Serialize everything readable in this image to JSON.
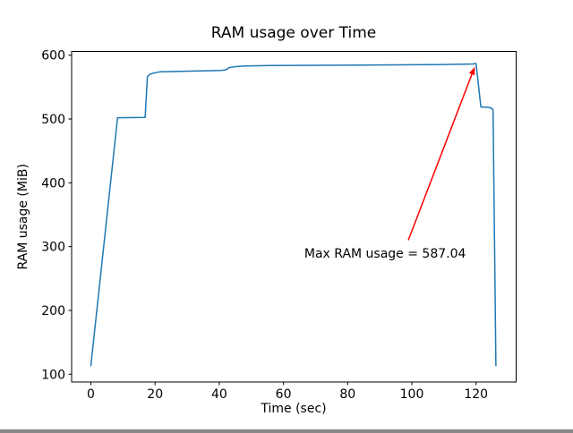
{
  "figure": {
    "background": "#ffffff"
  },
  "chart_data": {
    "type": "line",
    "title": "RAM usage over Time",
    "xlabel": "Time (sec)",
    "ylabel": "RAM usage (MiB)",
    "xlim": [
      -6.0,
      132.5
    ],
    "ylim": [
      87.8,
      605.9
    ],
    "xticks": [
      0,
      20,
      40,
      60,
      80,
      100,
      120
    ],
    "yticks": [
      100,
      200,
      300,
      400,
      500,
      600
    ],
    "grid": false,
    "legend_position": "none",
    "series": [
      {
        "name": "RAM usage",
        "color": "#1f77b4",
        "points": [
          [
            0,
            113.5
          ],
          [
            8.3,
            502.0
          ],
          [
            16.9,
            502.5
          ],
          [
            17.6,
            566.0
          ],
          [
            18.3,
            570.0
          ],
          [
            19.5,
            572.0
          ],
          [
            21.5,
            574.0
          ],
          [
            40.5,
            576.0
          ],
          [
            42.0,
            577.0
          ],
          [
            43.0,
            580.5
          ],
          [
            45.0,
            582.0
          ],
          [
            48.0,
            583.0
          ],
          [
            56.0,
            583.7
          ],
          [
            70.0,
            584.2
          ],
          [
            85.0,
            584.6
          ],
          [
            100.0,
            585.0
          ],
          [
            110.0,
            585.4
          ],
          [
            116.0,
            585.8
          ],
          [
            119.0,
            586.3
          ],
          [
            120.0,
            587.04
          ],
          [
            121.5,
            519.0
          ],
          [
            124.3,
            518.0
          ],
          [
            125.3,
            515.0
          ],
          [
            126.2,
            113.5
          ]
        ]
      }
    ],
    "annotation": {
      "text": "Max RAM usage = 587.04",
      "color": "#ff0000",
      "text_xy": [
        66.5,
        283
      ],
      "arrow_from": [
        98.9,
        310
      ],
      "arrow_to": [
        120,
        587.04
      ]
    },
    "max_value": 587.04
  }
}
